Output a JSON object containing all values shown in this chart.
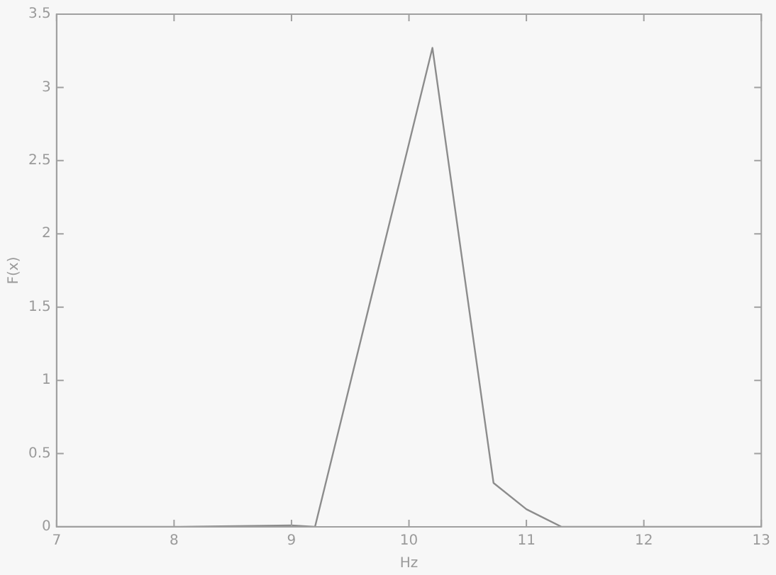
{
  "chart_data": {
    "type": "line",
    "xlabel": "Hz",
    "ylabel": "F(x)",
    "x": [
      7,
      8,
      9,
      9.2,
      10.2,
      10.72,
      11,
      11.3,
      12,
      13
    ],
    "series": [
      {
        "color": "#8c8c8c",
        "values": [
          0,
          0,
          0.01,
          0,
          3.27,
          0.3,
          0.12,
          0,
          0,
          0
        ]
      }
    ],
    "xlim": [
      7,
      13
    ],
    "xticks": [
      7,
      8,
      9,
      10,
      11,
      12,
      13
    ],
    "ylim": [
      0,
      3.5
    ],
    "yticks": [
      0,
      0.5,
      1,
      1.5,
      2,
      2.5,
      3,
      3.5
    ],
    "grid": false,
    "legend": false,
    "marker": "none",
    "line_style": "solid"
  }
}
